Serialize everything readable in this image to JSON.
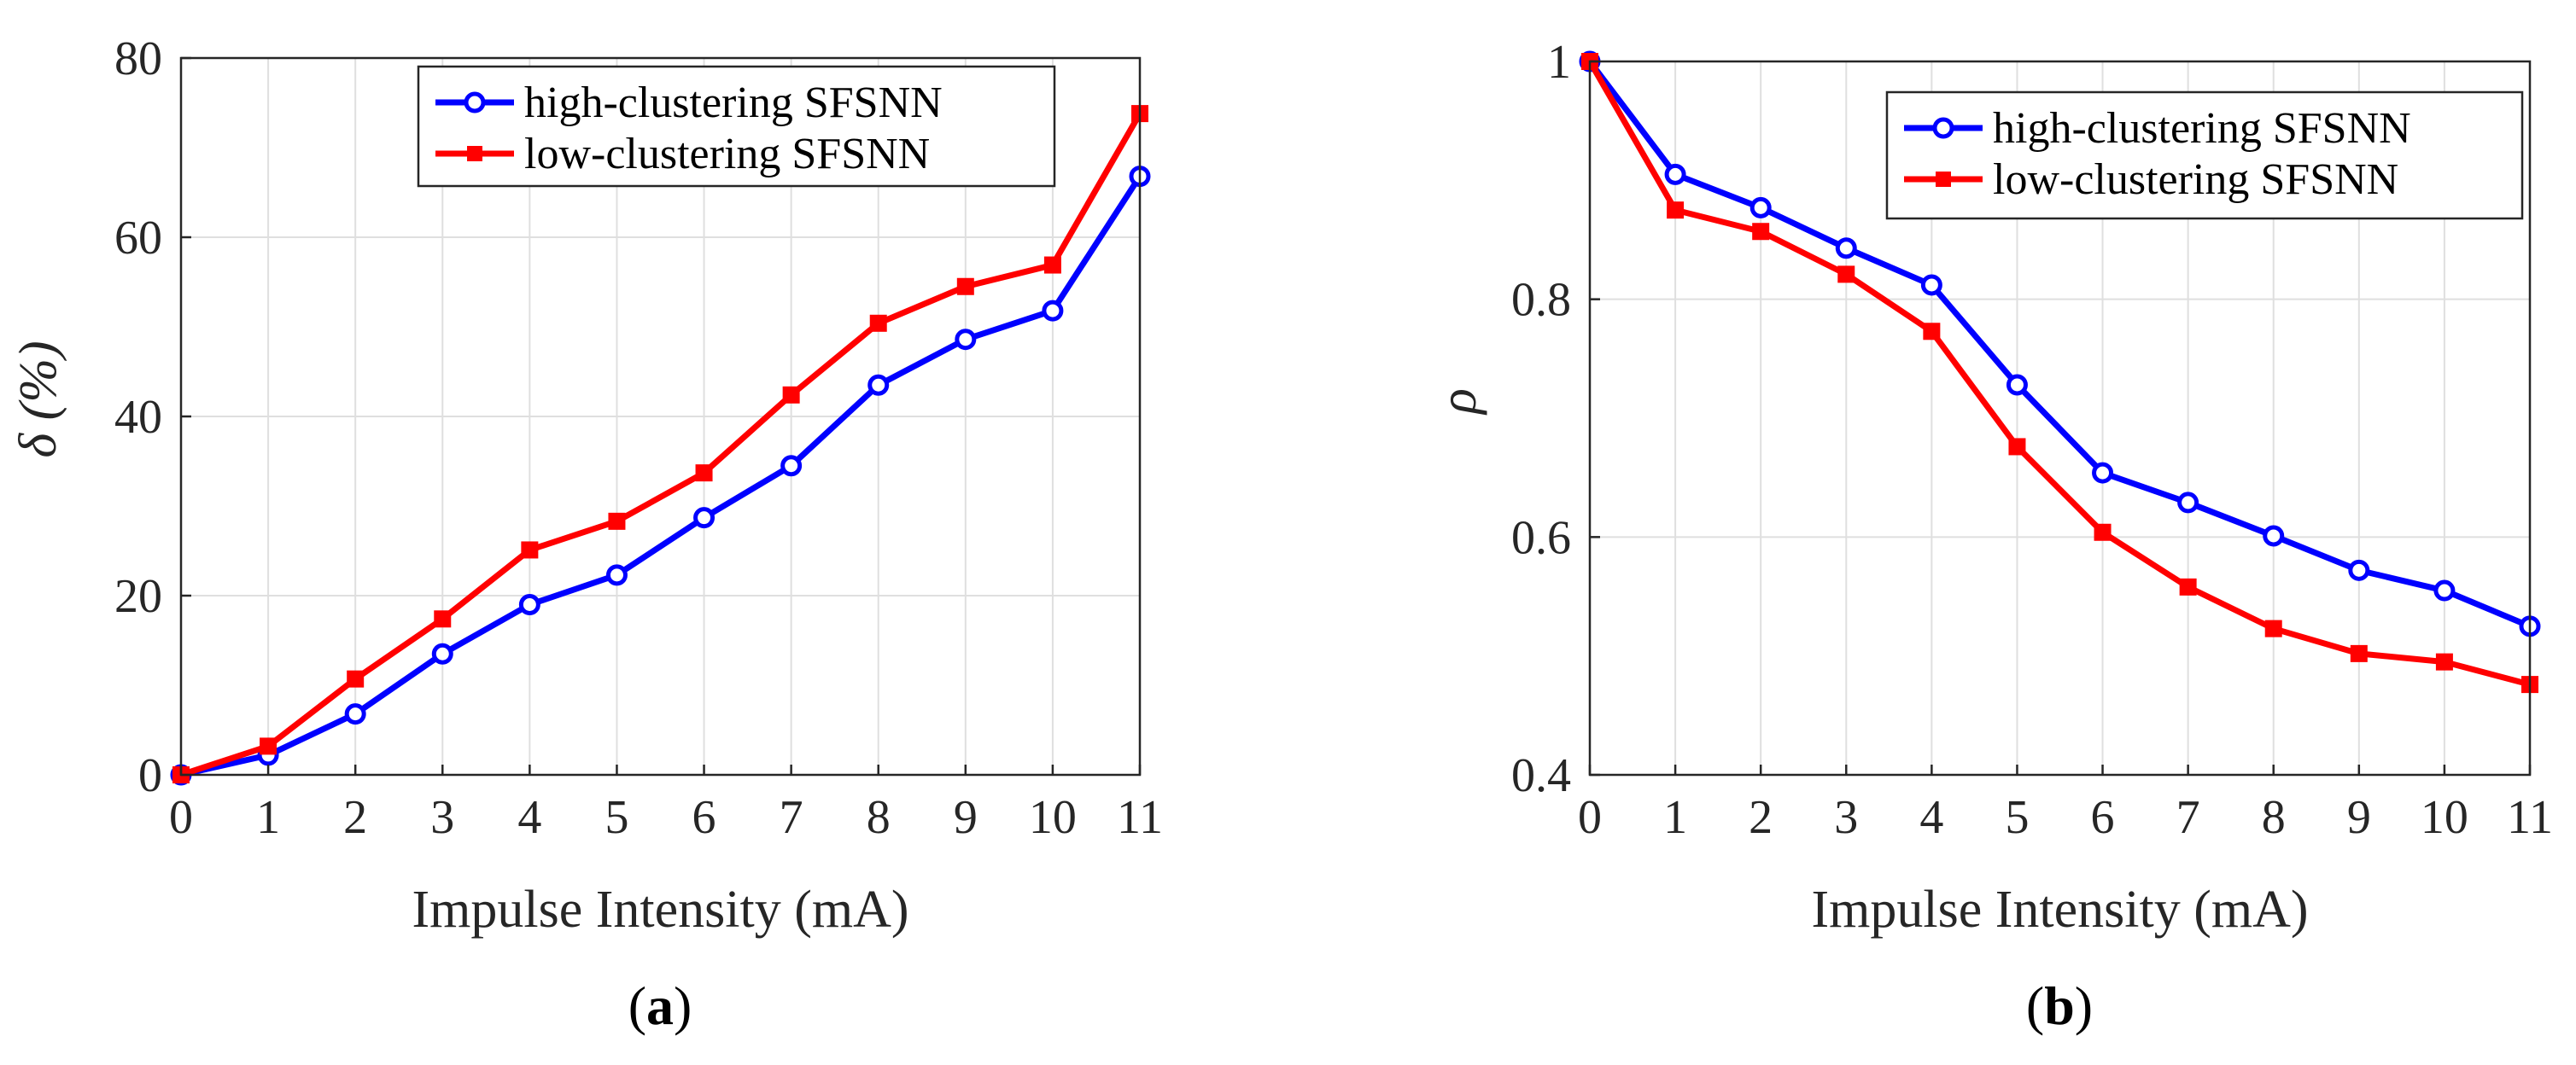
{
  "chart_data": [
    {
      "type": "line",
      "panel_label": "a",
      "xlabel": "Impulse Intensity (mA)",
      "ylabel": "δ (%)",
      "x": [
        0,
        1,
        2,
        3,
        4,
        5,
        6,
        7,
        8,
        9,
        10,
        11
      ],
      "xlim": [
        0,
        11
      ],
      "ylim": [
        0,
        80
      ],
      "xticks": [
        "0",
        "1",
        "2",
        "3",
        "4",
        "5",
        "6",
        "7",
        "8",
        "9",
        "10",
        "11"
      ],
      "yticks": [
        "0",
        "20",
        "40",
        "60",
        "80"
      ],
      "ytick_values": [
        0,
        20,
        40,
        60,
        80
      ],
      "grid": true,
      "legend_position": "top-right",
      "series": [
        {
          "name": "high-clustering SFSNN",
          "color": "#0000ff",
          "marker": "circle",
          "values": [
            0,
            2.2,
            6.8,
            13.5,
            19.0,
            22.3,
            28.7,
            34.5,
            43.5,
            48.6,
            51.8,
            66.8
          ]
        },
        {
          "name": "low-clustering SFSNN",
          "color": "#ff0000",
          "marker": "square",
          "values": [
            0,
            3.2,
            10.7,
            17.4,
            25.1,
            28.3,
            33.7,
            42.4,
            50.4,
            54.5,
            56.9,
            73.8
          ]
        }
      ]
    },
    {
      "type": "line",
      "panel_label": "b",
      "xlabel": "Impulse Intensity (mA)",
      "ylabel": "ρ",
      "x": [
        0,
        1,
        2,
        3,
        4,
        5,
        6,
        7,
        8,
        9,
        10,
        11
      ],
      "xlim": [
        0,
        11
      ],
      "ylim": [
        0.4,
        1.0
      ],
      "xticks": [
        "0",
        "1",
        "2",
        "3",
        "4",
        "5",
        "6",
        "7",
        "8",
        "9",
        "10",
        "11"
      ],
      "yticks": [
        "0.4",
        "0.6",
        "0.8",
        "1"
      ],
      "ytick_values": [
        0.4,
        0.6,
        0.8,
        1.0
      ],
      "grid": true,
      "legend_position": "top-right",
      "series": [
        {
          "name": "high-clustering SFSNN",
          "color": "#0000ff",
          "marker": "circle",
          "values": [
            1.0,
            0.905,
            0.877,
            0.843,
            0.812,
            0.728,
            0.654,
            0.629,
            0.601,
            0.572,
            0.555,
            0.525
          ]
        },
        {
          "name": "low-clustering SFSNN",
          "color": "#ff0000",
          "marker": "square",
          "values": [
            1.0,
            0.875,
            0.857,
            0.821,
            0.773,
            0.676,
            0.604,
            0.558,
            0.523,
            0.502,
            0.495,
            0.476
          ]
        }
      ]
    }
  ]
}
